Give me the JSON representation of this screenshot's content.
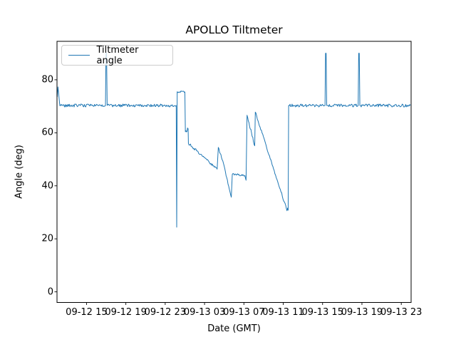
{
  "chart_data": {
    "type": "line",
    "title": "APOLLO Tiltmeter",
    "xlabel": "Date (GMT)",
    "ylabel": "Angle (deg)",
    "grid": false,
    "legend_position": "upper left",
    "x_axis": {
      "unit": "hours since 09-12 12:00 GMT",
      "lim": [
        0,
        36
      ],
      "ticks": [
        {
          "t": 3,
          "label": "09-12 15"
        },
        {
          "t": 7,
          "label": "09-12 19"
        },
        {
          "t": 11,
          "label": "09-12 23"
        },
        {
          "t": 15,
          "label": "09-13 03"
        },
        {
          "t": 19,
          "label": "09-13 07"
        },
        {
          "t": 23,
          "label": "09-13 11"
        },
        {
          "t": 27,
          "label": "09-13 15"
        },
        {
          "t": 31,
          "label": "09-13 19"
        },
        {
          "t": 35,
          "label": "09-13 23"
        }
      ]
    },
    "y_axis": {
      "lim": [
        -4,
        94.5
      ],
      "ticks": [
        0,
        20,
        40,
        60,
        80
      ]
    },
    "series": [
      {
        "name": "Tiltmeter angle",
        "color": "#1f77b4",
        "segments_format": "[t0_hours, value0_deg, t1_hours, value1_deg, noise_amplitude_deg]",
        "segments": [
          [
            0.02,
            73.5,
            0.1,
            77.3,
            0
          ],
          [
            0.1,
            77.3,
            0.28,
            70.5,
            0
          ],
          [
            0.28,
            70.3,
            4.93,
            70.3,
            0.55
          ],
          [
            4.93,
            70.3,
            4.98,
            90.0,
            0
          ],
          [
            4.98,
            90.0,
            5.04,
            90.0,
            0
          ],
          [
            5.04,
            90.0,
            5.1,
            70.3,
            0
          ],
          [
            5.1,
            70.3,
            12.12,
            70.3,
            0.55
          ],
          [
            12.12,
            70.0,
            12.17,
            24.4,
            0
          ],
          [
            12.17,
            24.4,
            12.22,
            75.5,
            0
          ],
          [
            12.22,
            75.5,
            13.0,
            75.4,
            0.35
          ],
          [
            13.0,
            75.4,
            13.05,
            60.4,
            0
          ],
          [
            13.05,
            60.4,
            13.22,
            60.6,
            0.35
          ],
          [
            13.22,
            60.6,
            13.27,
            61.8,
            0
          ],
          [
            13.27,
            61.8,
            13.33,
            61.5,
            0
          ],
          [
            13.33,
            61.5,
            13.36,
            56.0,
            0
          ],
          [
            13.36,
            56.0,
            16.28,
            46.3,
            0.45
          ],
          [
            16.28,
            46.3,
            16.4,
            54.5,
            0
          ],
          [
            16.4,
            54.5,
            16.92,
            48.5,
            0.4
          ],
          [
            16.92,
            48.5,
            17.72,
            35.7,
            0.4
          ],
          [
            17.72,
            35.7,
            17.82,
            44.3,
            0
          ],
          [
            17.82,
            44.3,
            19.1,
            43.9,
            0.45
          ],
          [
            19.1,
            43.9,
            19.22,
            42.1,
            0.3
          ],
          [
            19.22,
            42.1,
            19.32,
            66.6,
            0
          ],
          [
            19.32,
            66.6,
            20.1,
            55.1,
            0.5
          ],
          [
            20.1,
            55.1,
            20.16,
            67.8,
            0
          ],
          [
            20.16,
            67.8,
            23.32,
            31.4,
            0.45
          ],
          [
            23.32,
            31.4,
            23.38,
            30.6,
            0
          ],
          [
            23.38,
            30.6,
            23.44,
            31.6,
            0
          ],
          [
            23.44,
            31.6,
            23.5,
            30.8,
            0
          ],
          [
            23.5,
            30.8,
            23.55,
            70.3,
            0
          ],
          [
            23.55,
            70.3,
            27.25,
            70.3,
            0.55
          ],
          [
            27.25,
            70.3,
            27.3,
            90.0,
            0
          ],
          [
            27.3,
            90.0,
            27.36,
            90.0,
            0
          ],
          [
            27.36,
            90.0,
            27.42,
            70.3,
            0
          ],
          [
            27.42,
            70.3,
            30.62,
            70.3,
            0.55
          ],
          [
            30.62,
            70.3,
            30.67,
            90.0,
            0
          ],
          [
            30.67,
            90.0,
            30.73,
            90.0,
            0
          ],
          [
            30.73,
            90.0,
            30.79,
            70.3,
            0
          ],
          [
            30.79,
            70.3,
            35.93,
            70.3,
            0.55
          ]
        ]
      }
    ]
  },
  "legend": {
    "items": [
      {
        "label": "Tiltmeter angle",
        "color": "#1f77b4"
      }
    ]
  },
  "axes_style": {
    "spine_color": "#000000",
    "tick_color": "#000000",
    "background": "#ffffff"
  }
}
